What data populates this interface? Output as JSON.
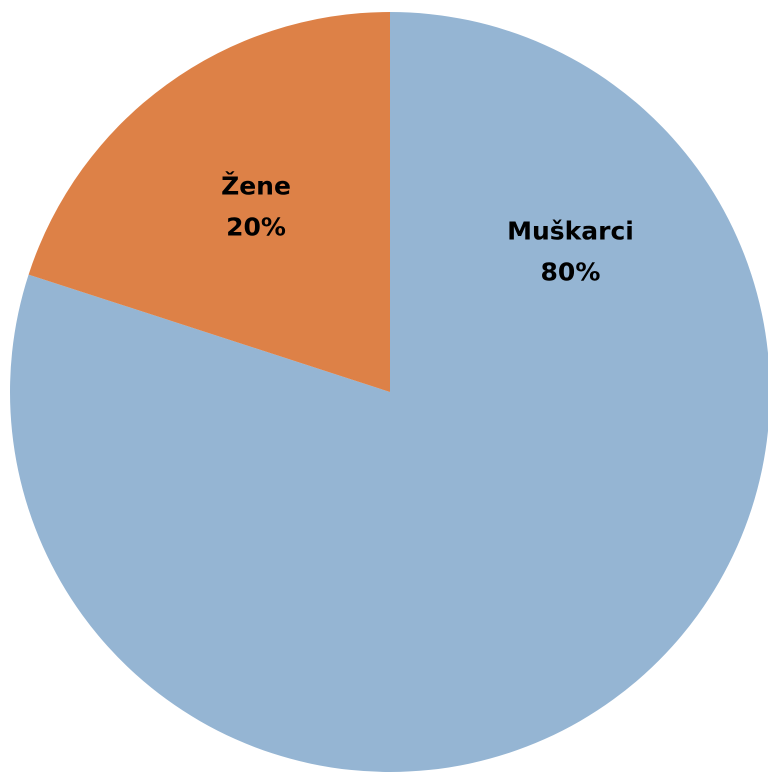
{
  "chart_data": {
    "type": "pie",
    "categories": [
      "Muškarci",
      "Žene"
    ],
    "values": [
      80,
      20
    ],
    "value_labels": [
      "80%",
      "20%"
    ],
    "colors": [
      "#95b5d3",
      "#dd8147"
    ]
  }
}
